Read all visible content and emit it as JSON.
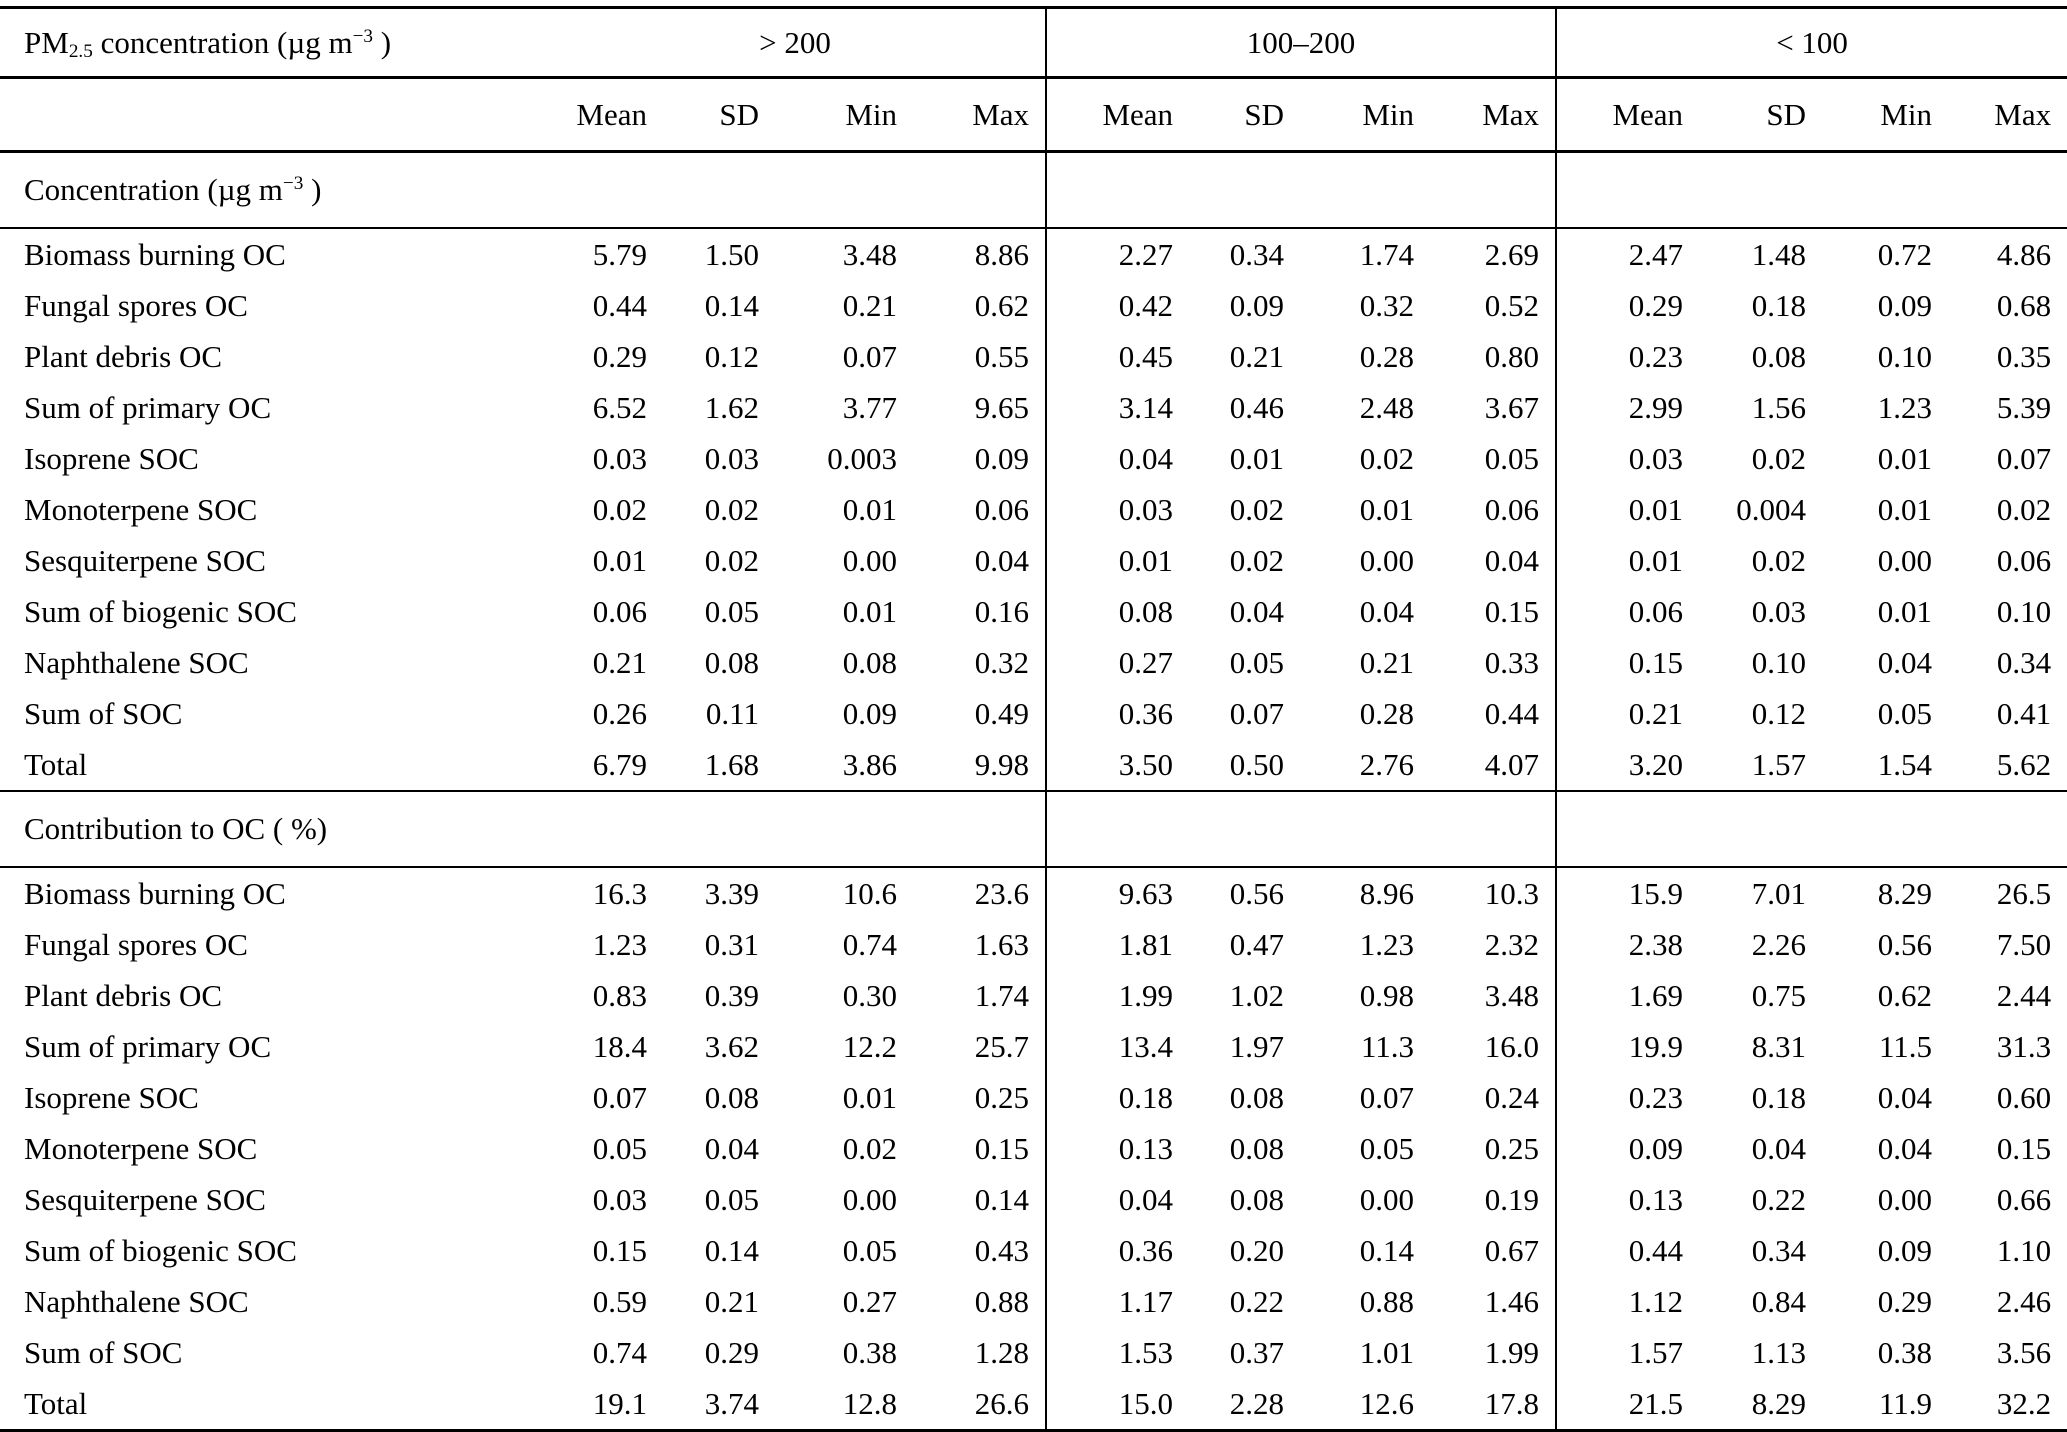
{
  "page": {
    "background": "#ffffff",
    "text_color": "#000000",
    "rule_color": "#000000"
  },
  "table": {
    "header": {
      "corner": {
        "base1": "PM",
        "sub": "2.5",
        "base2": " concentration (µg m",
        "sup": "−3",
        "base3": " )"
      },
      "groups": [
        "> 200",
        "100–200",
        "< 100"
      ],
      "stats": [
        "Mean",
        "SD",
        "Min",
        "Max"
      ]
    },
    "sections": [
      {
        "title": {
          "pre": "Concentration (µg m",
          "sup": "−3",
          "post": " )"
        },
        "rows": [
          {
            "label": "Biomass burning OC",
            "values": [
              "5.79",
              "1.50",
              "3.48",
              "8.86",
              "2.27",
              "0.34",
              "1.74",
              "2.69",
              "2.47",
              "1.48",
              "0.72",
              "4.86"
            ]
          },
          {
            "label": "Fungal spores OC",
            "values": [
              "0.44",
              "0.14",
              "0.21",
              "0.62",
              "0.42",
              "0.09",
              "0.32",
              "0.52",
              "0.29",
              "0.18",
              "0.09",
              "0.68"
            ]
          },
          {
            "label": "Plant debris OC",
            "values": [
              "0.29",
              "0.12",
              "0.07",
              "0.55",
              "0.45",
              "0.21",
              "0.28",
              "0.80",
              "0.23",
              "0.08",
              "0.10",
              "0.35"
            ]
          },
          {
            "label": "Sum of primary OC",
            "values": [
              "6.52",
              "1.62",
              "3.77",
              "9.65",
              "3.14",
              "0.46",
              "2.48",
              "3.67",
              "2.99",
              "1.56",
              "1.23",
              "5.39"
            ]
          },
          {
            "label": "Isoprene SOC",
            "values": [
              "0.03",
              "0.03",
              "0.003",
              "0.09",
              "0.04",
              "0.01",
              "0.02",
              "0.05",
              "0.03",
              "0.02",
              "0.01",
              "0.07"
            ]
          },
          {
            "label": "Monoterpene SOC",
            "values": [
              "0.02",
              "0.02",
              "0.01",
              "0.06",
              "0.03",
              "0.02",
              "0.01",
              "0.06",
              "0.01",
              "0.004",
              "0.01",
              "0.02"
            ]
          },
          {
            "label": "Sesquiterpene SOC",
            "values": [
              "0.01",
              "0.02",
              "0.00",
              "0.04",
              "0.01",
              "0.02",
              "0.00",
              "0.04",
              "0.01",
              "0.02",
              "0.00",
              "0.06"
            ]
          },
          {
            "label": "Sum of biogenic SOC",
            "values": [
              "0.06",
              "0.05",
              "0.01",
              "0.16",
              "0.08",
              "0.04",
              "0.04",
              "0.15",
              "0.06",
              "0.03",
              "0.01",
              "0.10"
            ]
          },
          {
            "label": "Naphthalene SOC",
            "values": [
              "0.21",
              "0.08",
              "0.08",
              "0.32",
              "0.27",
              "0.05",
              "0.21",
              "0.33",
              "0.15",
              "0.10",
              "0.04",
              "0.34"
            ]
          },
          {
            "label": "Sum of SOC",
            "values": [
              "0.26",
              "0.11",
              "0.09",
              "0.49",
              "0.36",
              "0.07",
              "0.28",
              "0.44",
              "0.21",
              "0.12",
              "0.05",
              "0.41"
            ]
          },
          {
            "label": "Total",
            "values": [
              "6.79",
              "1.68",
              "3.86",
              "9.98",
              "3.50",
              "0.50",
              "2.76",
              "4.07",
              "3.20",
              "1.57",
              "1.54",
              "5.62"
            ]
          }
        ]
      },
      {
        "title": {
          "pre": "Contribution to OC ( %)",
          "sup": "",
          "post": ""
        },
        "rows": [
          {
            "label": "Biomass burning OC",
            "values": [
              "16.3",
              "3.39",
              "10.6",
              "23.6",
              "9.63",
              "0.56",
              "8.96",
              "10.3",
              "15.9",
              "7.01",
              "8.29",
              "26.5"
            ]
          },
          {
            "label": "Fungal spores OC",
            "values": [
              "1.23",
              "0.31",
              "0.74",
              "1.63",
              "1.81",
              "0.47",
              "1.23",
              "2.32",
              "2.38",
              "2.26",
              "0.56",
              "7.50"
            ]
          },
          {
            "label": "Plant debris OC",
            "values": [
              "0.83",
              "0.39",
              "0.30",
              "1.74",
              "1.99",
              "1.02",
              "0.98",
              "3.48",
              "1.69",
              "0.75",
              "0.62",
              "2.44"
            ]
          },
          {
            "label": "Sum of primary OC",
            "values": [
              "18.4",
              "3.62",
              "12.2",
              "25.7",
              "13.4",
              "1.97",
              "11.3",
              "16.0",
              "19.9",
              "8.31",
              "11.5",
              "31.3"
            ]
          },
          {
            "label": "Isoprene SOC",
            "values": [
              "0.07",
              "0.08",
              "0.01",
              "0.25",
              "0.18",
              "0.08",
              "0.07",
              "0.24",
              "0.23",
              "0.18",
              "0.04",
              "0.60"
            ]
          },
          {
            "label": "Monoterpene SOC",
            "values": [
              "0.05",
              "0.04",
              "0.02",
              "0.15",
              "0.13",
              "0.08",
              "0.05",
              "0.25",
              "0.09",
              "0.04",
              "0.04",
              "0.15"
            ]
          },
          {
            "label": "Sesquiterpene SOC",
            "values": [
              "0.03",
              "0.05",
              "0.00",
              "0.14",
              "0.04",
              "0.08",
              "0.00",
              "0.19",
              "0.13",
              "0.22",
              "0.00",
              "0.66"
            ]
          },
          {
            "label": "Sum of biogenic SOC",
            "values": [
              "0.15",
              "0.14",
              "0.05",
              "0.43",
              "0.36",
              "0.20",
              "0.14",
              "0.67",
              "0.44",
              "0.34",
              "0.09",
              "1.10"
            ]
          },
          {
            "label": "Naphthalene SOC",
            "values": [
              "0.59",
              "0.21",
              "0.27",
              "0.88",
              "1.17",
              "0.22",
              "0.88",
              "1.46",
              "1.12",
              "0.84",
              "0.29",
              "2.46"
            ]
          },
          {
            "label": "Sum of SOC",
            "values": [
              "0.74",
              "0.29",
              "0.38",
              "1.28",
              "1.53",
              "0.37",
              "1.01",
              "1.99",
              "1.57",
              "1.13",
              "0.38",
              "3.56"
            ]
          },
          {
            "label": "Total",
            "values": [
              "19.1",
              "3.74",
              "12.8",
              "26.6",
              "15.0",
              "2.28",
              "12.6",
              "17.8",
              "21.5",
              "8.29",
              "11.9",
              "32.2"
            ]
          }
        ]
      }
    ]
  }
}
